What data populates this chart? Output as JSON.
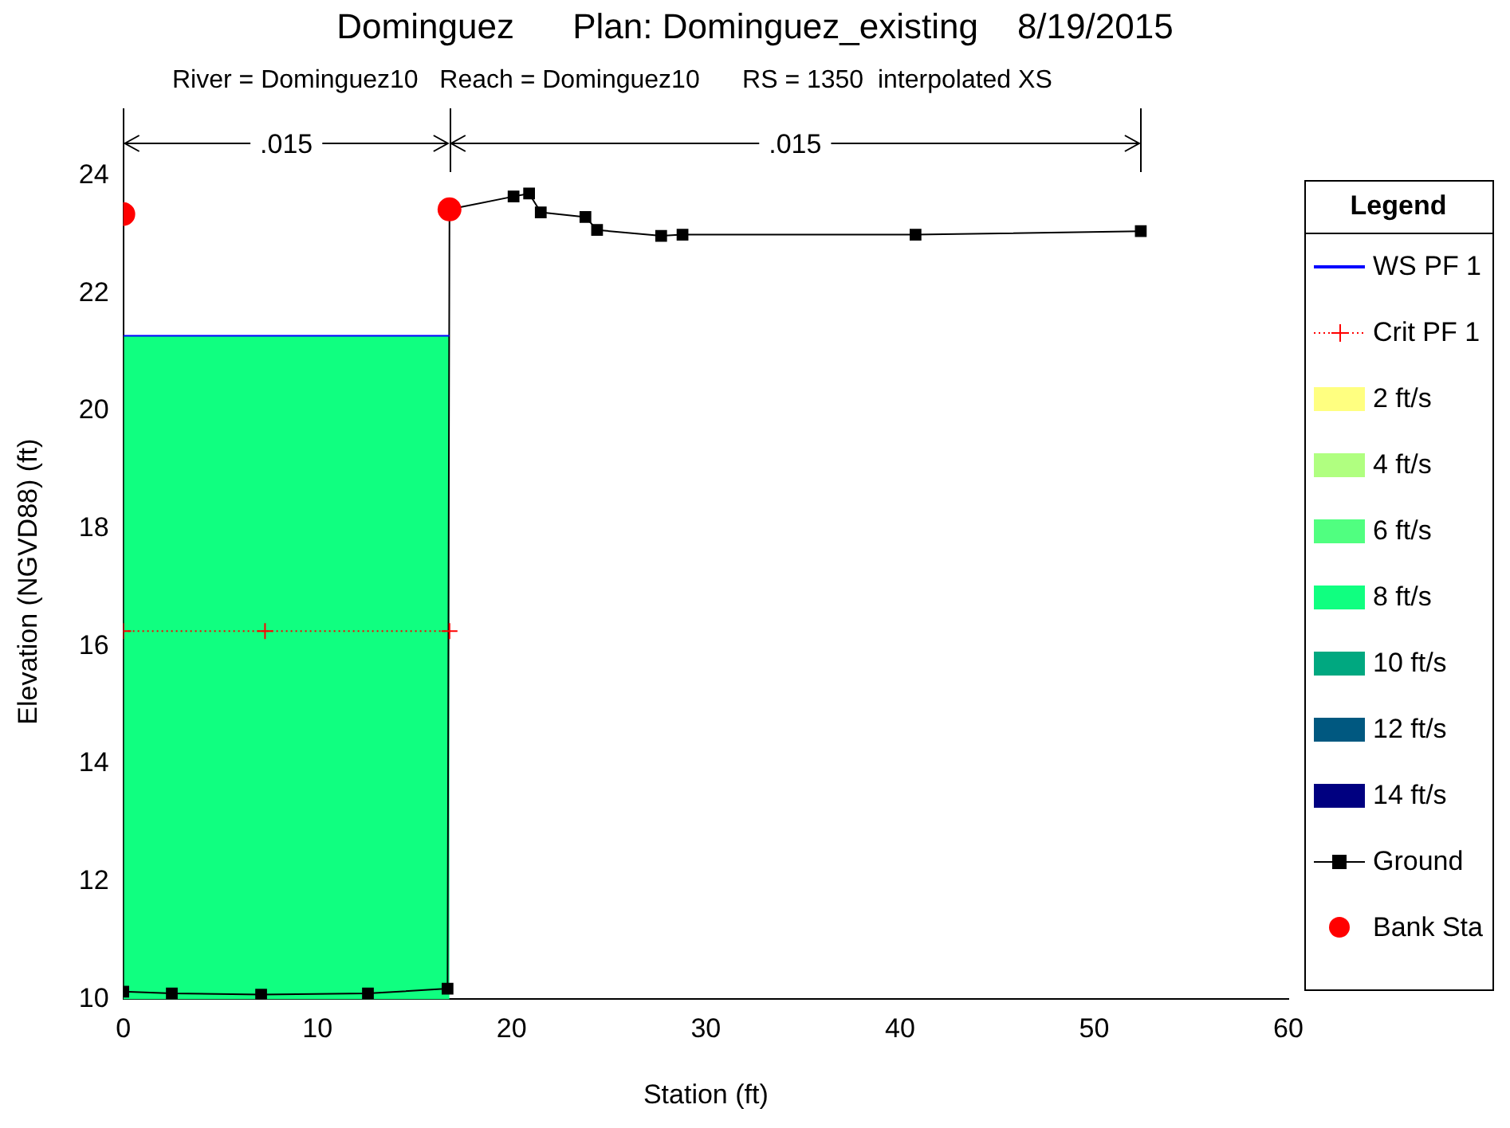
{
  "chart_data": {
    "type": "line",
    "title": "Dominguez      Plan: Dominguez_existing    8/19/2015",
    "subtitle": "River = Dominguez10   Reach = Dominguez10      RS = 1350  interpolated XS",
    "xlabel": "Station (ft)",
    "ylabel": "Elevation (NGVD88) (ft)",
    "legend_title": "Legend",
    "legend": "right",
    "grid": false,
    "annotations": [
      ".015",
      ".015"
    ],
    "xlim": [
      0,
      60
    ],
    "xticks": [
      0,
      10,
      20,
      30,
      40,
      50,
      60
    ],
    "ylim": [
      10,
      24.2
    ],
    "yticks": [
      10,
      12,
      14,
      16,
      18,
      20,
      22,
      24
    ],
    "series": [
      {
        "name": "WS PF 1",
        "color": "#0000ff",
        "marker": "none",
        "line_style": "solid",
        "x": [
          0,
          16.8
        ],
        "values": [
          21.28,
          21.28
        ]
      },
      {
        "name": "Crit PF 1",
        "color": "#ff0000",
        "marker": "cross",
        "line_style": "dotted",
        "x": [
          0,
          7.3,
          16.8
        ],
        "values": [
          16.26,
          16.26,
          16.26
        ]
      },
      {
        "name": "2 ft/s",
        "type": "area",
        "color": "#ffff80"
      },
      {
        "name": "4 ft/s",
        "type": "area",
        "color": "#b0ff80"
      },
      {
        "name": "6 ft/s",
        "type": "area",
        "color": "#50ff80"
      },
      {
        "name": "8 ft/s",
        "type": "area",
        "color": "#10ff80",
        "x": [
          0,
          16.8
        ],
        "values": [
          21.28,
          21.28
        ]
      },
      {
        "name": "10 ft/s",
        "type": "area",
        "color": "#00a880"
      },
      {
        "name": "12 ft/s",
        "type": "area",
        "color": "#005880"
      },
      {
        "name": "14 ft/s",
        "type": "area",
        "color": "#000080"
      },
      {
        "name": "Ground",
        "color": "#000000",
        "marker": "square",
        "line_style": "solid",
        "x": [
          0,
          0,
          2.5,
          7.1,
          12.6,
          16.7,
          16.8,
          20.1,
          20.9,
          21.5,
          23.8,
          24.4,
          27.7,
          28.8,
          40.8,
          52.4
        ],
        "values": [
          23.35,
          10.13,
          10.1,
          10.08,
          10.1,
          10.18,
          23.43,
          23.65,
          23.7,
          23.38,
          23.3,
          23.08,
          22.98,
          23.0,
          23.0,
          23.06
        ]
      },
      {
        "name": "Bank Sta",
        "type": "scatter",
        "color": "#ff0000",
        "marker": "circle",
        "x": [
          0,
          16.8
        ],
        "values": [
          23.35,
          23.43
        ]
      }
    ]
  }
}
